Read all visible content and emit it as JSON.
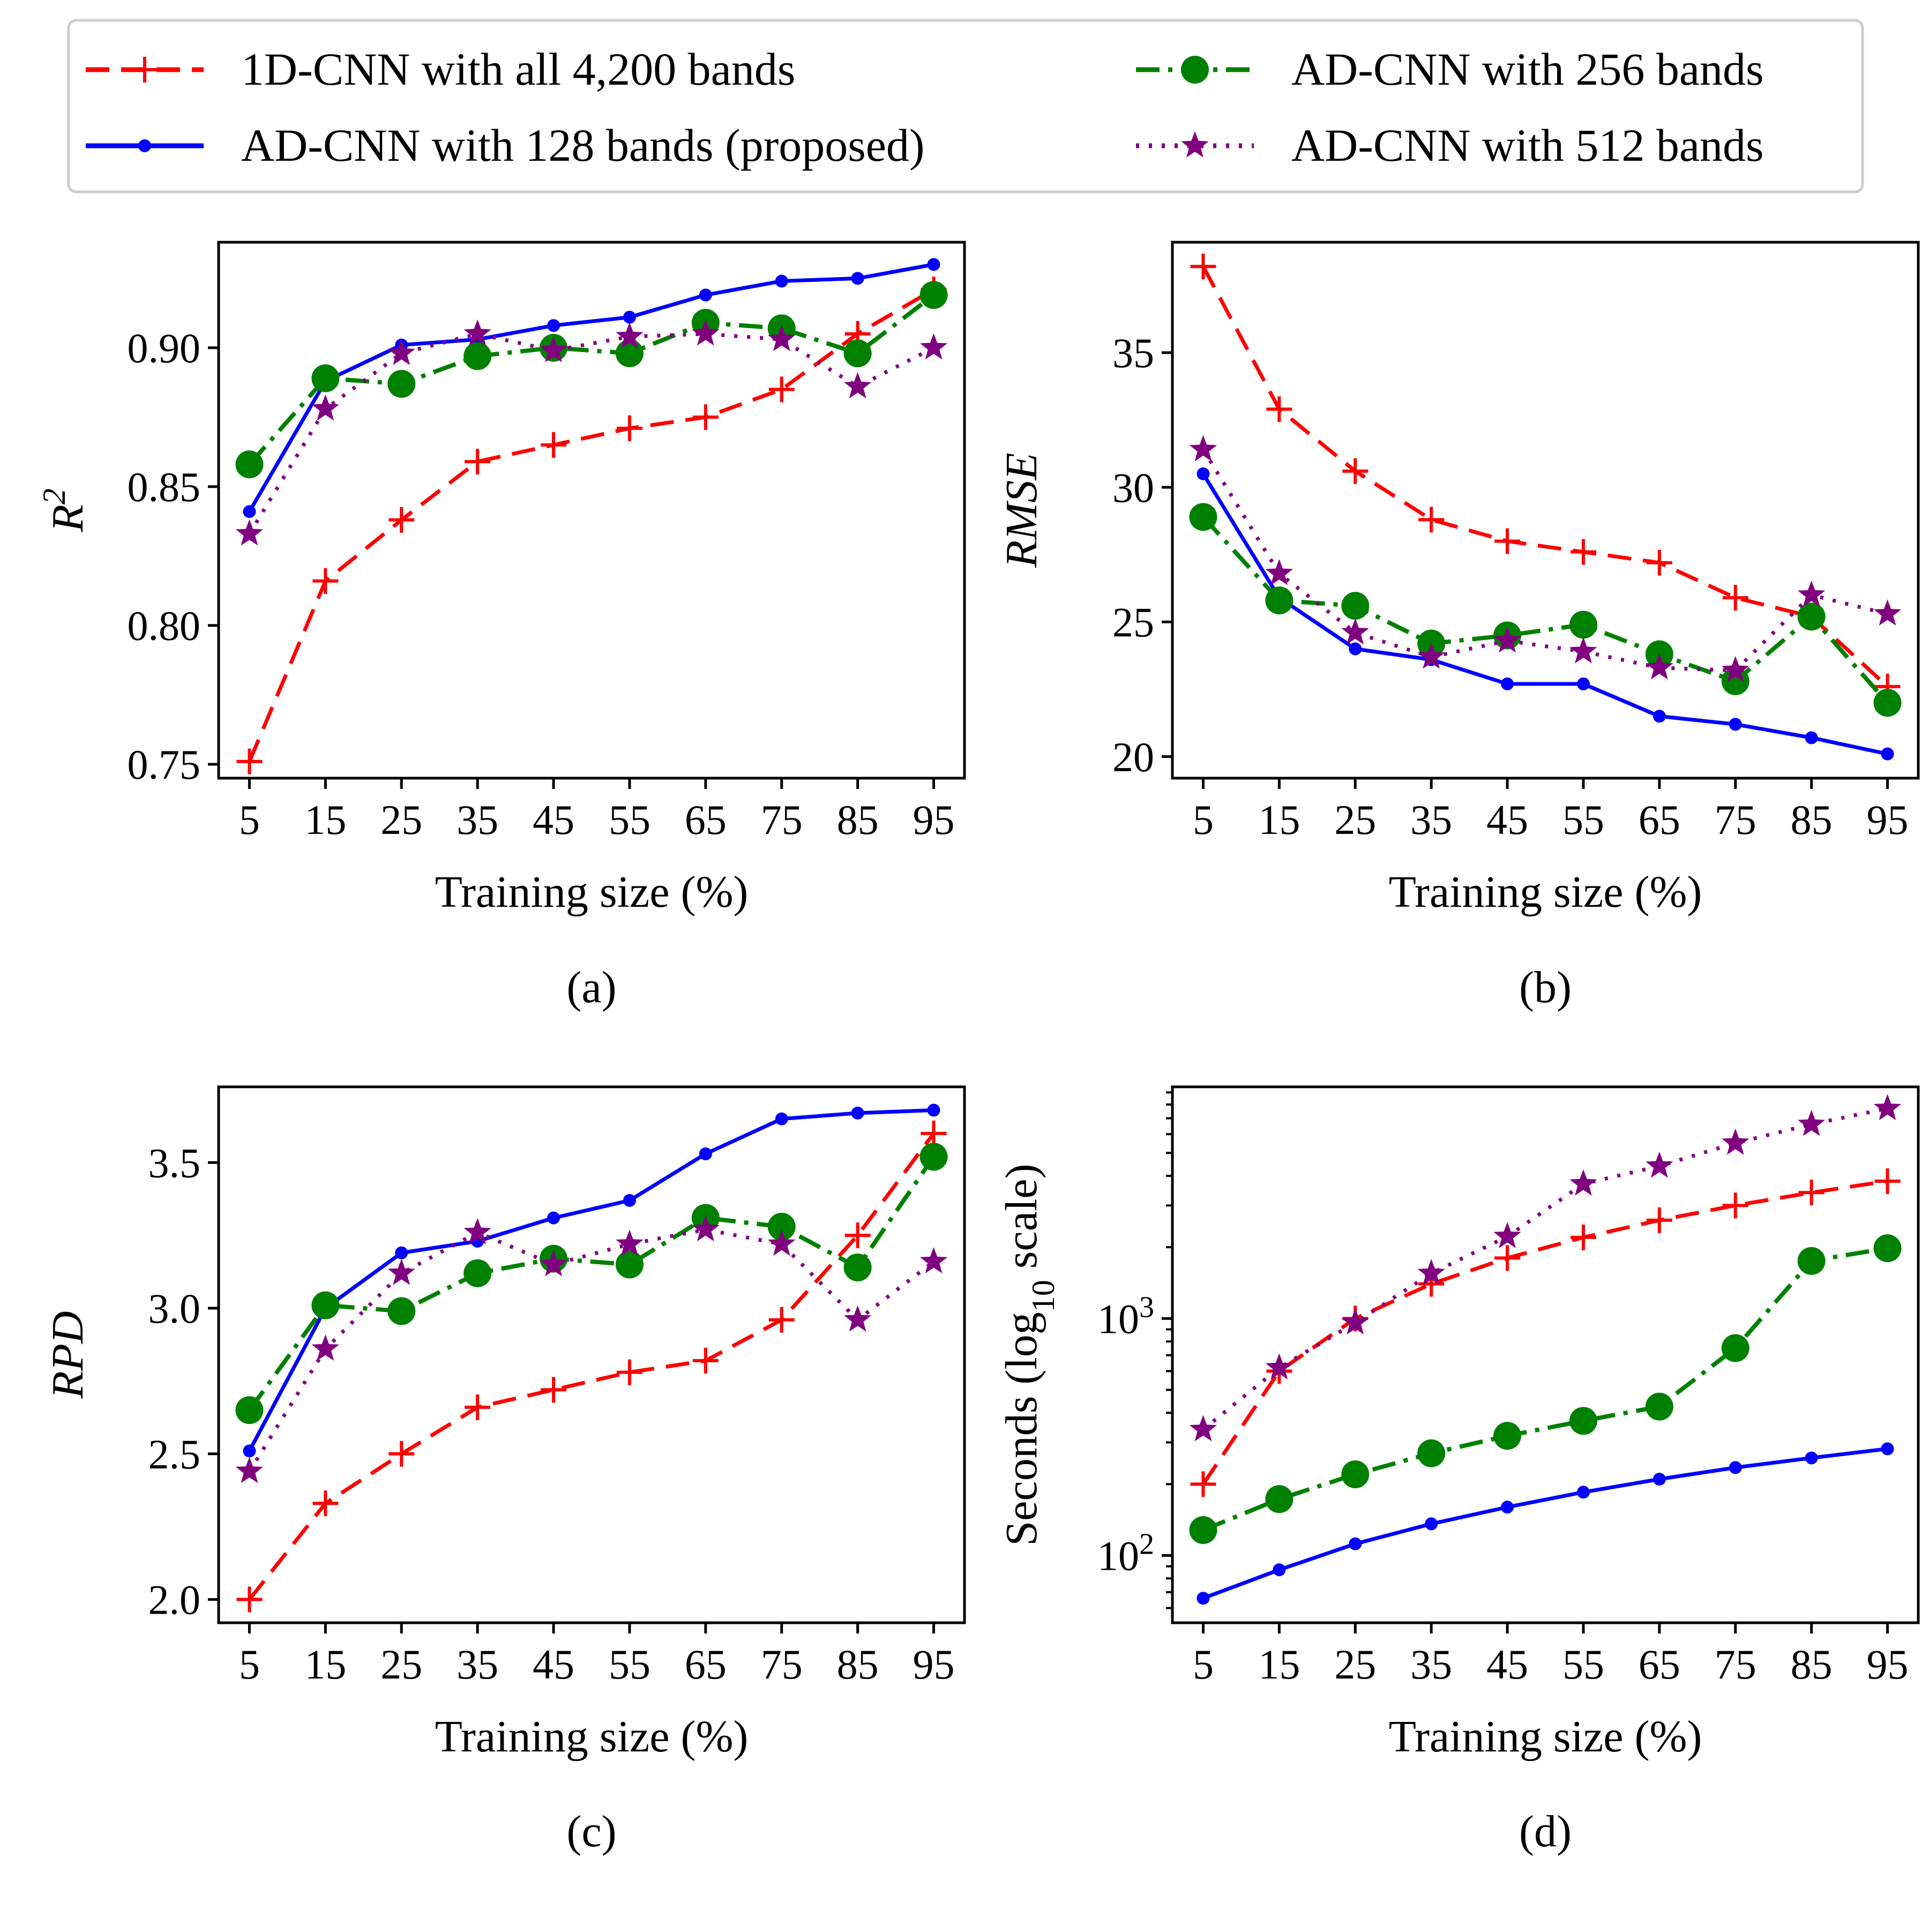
{
  "series_styles": [
    {
      "name": "1D-CNN with all 4,200 bands",
      "color": "#ff0000",
      "dash": "dashed",
      "marker": "plus"
    },
    {
      "name": "AD-CNN with 128 bands (proposed)",
      "color": "#0000ff",
      "dash": "solid",
      "marker": "dot"
    },
    {
      "name": "AD-CNN with 256 bands",
      "color": "#008000",
      "dash": "dashdot",
      "marker": "circle"
    },
    {
      "name": "AD-CNN with 512 bands",
      "color": "#800080",
      "dash": "dotted",
      "marker": "star"
    }
  ],
  "legend": {
    "placement": "top",
    "entries": [
      "1D-CNN with all 4,200 bands",
      "AD-CNN with 128 bands (proposed)",
      "AD-CNN with 256 bands",
      "AD-CNN with 512 bands"
    ]
  },
  "chart_data": [
    {
      "type": "line",
      "caption": "(a)",
      "xlabel": "Training size (%)",
      "ylabel": "R²",
      "x": [
        5,
        15,
        25,
        35,
        45,
        55,
        65,
        75,
        85,
        95
      ],
      "xticks": [
        "5",
        "15",
        "25",
        "35",
        "45",
        "55",
        "65",
        "75",
        "85",
        "95"
      ],
      "yscale": "linear",
      "ylim": [
        0.745,
        0.938
      ],
      "yticks": [
        0.75,
        0.8,
        0.85,
        0.9
      ],
      "ytick_labels": [
        "0.75",
        "0.80",
        "0.85",
        "0.90"
      ],
      "series": [
        {
          "name": "1D-CNN with all 4,200 bands",
          "values": [
            0.751,
            0.816,
            0.838,
            0.859,
            0.865,
            0.871,
            0.875,
            0.885,
            0.905,
            0.921
          ]
        },
        {
          "name": "AD-CNN with 128 bands (proposed)",
          "values": [
            0.841,
            0.888,
            0.901,
            0.903,
            0.908,
            0.911,
            0.919,
            0.924,
            0.925,
            0.93
          ]
        },
        {
          "name": "AD-CNN with 256 bands",
          "values": [
            0.858,
            0.889,
            0.887,
            0.897,
            0.9,
            0.898,
            0.909,
            0.907,
            0.898,
            0.919
          ]
        },
        {
          "name": "AD-CNN with 512 bands",
          "values": [
            0.833,
            0.878,
            0.898,
            0.905,
            0.899,
            0.904,
            0.905,
            0.903,
            0.886,
            0.9
          ]
        }
      ]
    },
    {
      "type": "line",
      "caption": "(b)",
      "xlabel": "Training size (%)",
      "ylabel": "RMSE",
      "x": [
        5,
        15,
        25,
        35,
        45,
        55,
        65,
        75,
        85,
        95
      ],
      "xticks": [
        "5",
        "15",
        "25",
        "35",
        "45",
        "55",
        "65",
        "75",
        "85",
        "95"
      ],
      "yscale": "linear",
      "ylim": [
        19.2,
        39.1
      ],
      "yticks": [
        20,
        25,
        30,
        35
      ],
      "ytick_labels": [
        "20",
        "25",
        "30",
        "35"
      ],
      "series": [
        {
          "name": "1D-CNN with all 4,200 bands",
          "values": [
            38.2,
            32.9,
            30.6,
            28.8,
            28.0,
            27.6,
            27.2,
            25.9,
            25.2,
            22.6
          ]
        },
        {
          "name": "AD-CNN with 128 bands (proposed)",
          "values": [
            30.5,
            25.9,
            24.0,
            23.6,
            22.7,
            22.7,
            21.5,
            21.2,
            20.7,
            20.1
          ]
        },
        {
          "name": "AD-CNN with 256 bands",
          "values": [
            28.9,
            25.8,
            25.6,
            24.2,
            24.5,
            24.9,
            23.8,
            22.8,
            25.2,
            22.0
          ]
        },
        {
          "name": "AD-CNN with 512 bands",
          "values": [
            31.4,
            26.8,
            24.6,
            23.7,
            24.3,
            23.9,
            23.3,
            23.2,
            26.0,
            25.3
          ]
        }
      ]
    },
    {
      "type": "line",
      "caption": "(c)",
      "xlabel": "Training size (%)",
      "ylabel": "RPD",
      "x": [
        5,
        15,
        25,
        35,
        45,
        55,
        65,
        75,
        85,
        95
      ],
      "xticks": [
        "5",
        "15",
        "25",
        "35",
        "45",
        "55",
        "65",
        "75",
        "85",
        "95"
      ],
      "yscale": "linear",
      "ylim": [
        1.92,
        3.76
      ],
      "yticks": [
        2.0,
        2.5,
        3.0,
        3.5
      ],
      "ytick_labels": [
        "2.0",
        "2.5",
        "3.0",
        "3.5"
      ],
      "series": [
        {
          "name": "1D-CNN with all 4,200 bands",
          "values": [
            2.0,
            2.33,
            2.5,
            2.66,
            2.72,
            2.78,
            2.82,
            2.96,
            3.25,
            3.6
          ]
        },
        {
          "name": "AD-CNN with 128 bands (proposed)",
          "values": [
            2.51,
            3.0,
            3.19,
            3.23,
            3.31,
            3.37,
            3.53,
            3.65,
            3.67,
            3.68
          ]
        },
        {
          "name": "AD-CNN with 256 bands",
          "values": [
            2.65,
            3.01,
            2.99,
            3.12,
            3.17,
            3.15,
            3.31,
            3.28,
            3.14,
            3.52
          ]
        },
        {
          "name": "AD-CNN with 512 bands",
          "values": [
            2.44,
            2.86,
            3.12,
            3.26,
            3.15,
            3.22,
            3.27,
            3.22,
            2.96,
            3.16
          ]
        }
      ]
    },
    {
      "type": "line",
      "caption": "(d)",
      "xlabel": "Training size (%)",
      "ylabel": "Seconds (log₁₀ scale)",
      "x": [
        5,
        15,
        25,
        35,
        45,
        55,
        65,
        75,
        85,
        95
      ],
      "xticks": [
        "5",
        "15",
        "25",
        "35",
        "45",
        "55",
        "65",
        "75",
        "85",
        "95"
      ],
      "yscale": "log",
      "ylim": [
        52,
        9500
      ],
      "yticks": [
        100,
        1000
      ],
      "ytick_labels": [
        "10²",
        "10³"
      ],
      "series": [
        {
          "name": "1D-CNN with all 4,200 bands",
          "values": [
            200,
            600,
            1000,
            1400,
            1800,
            2200,
            2600,
            3000,
            3400,
            3800
          ]
        },
        {
          "name": "AD-CNN with 128 bands (proposed)",
          "values": [
            66,
            87,
            112,
            136,
            160,
            185,
            210,
            235,
            258,
            282
          ]
        },
        {
          "name": "AD-CNN with 256 bands",
          "values": [
            128,
            173,
            220,
            270,
            320,
            370,
            425,
            750,
            1750,
            1980
          ]
        },
        {
          "name": "AD-CNN with 512 bands",
          "values": [
            340,
            620,
            960,
            1550,
            2220,
            3700,
            4400,
            5500,
            6600,
            7700
          ]
        }
      ]
    }
  ]
}
